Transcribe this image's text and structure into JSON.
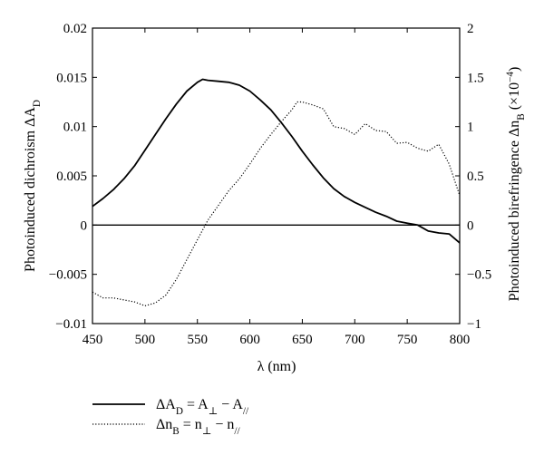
{
  "chart_data": {
    "type": "line",
    "xlabel": "λ (nm)",
    "ylabel_left": "Photoinduced dichroism ΔA_D",
    "ylabel_right": "Photoinduced birefringence Δn_B (×10^−4)",
    "xlim": [
      450,
      800
    ],
    "ylim_left": [
      -0.01,
      0.02
    ],
    "ylim_right": [
      -1,
      2
    ],
    "grid": false,
    "legend_position": "bottom-left",
    "x_ticks": [
      "450",
      "500",
      "550",
      "600",
      "650",
      "700",
      "750",
      "800"
    ],
    "y_left_ticks": [
      "−0.01",
      "−0.005",
      "0",
      "0.005",
      "0.01",
      "0.015",
      "0.02"
    ],
    "y_right_ticks": [
      "−1",
      "−0.5",
      "0",
      "0.5",
      "1",
      "1.5",
      "2"
    ],
    "series": [
      {
        "name": "ΔA_D = A_⊥ − A_//",
        "axis": "left",
        "style": "solid",
        "x": [
          450,
          460,
          470,
          480,
          490,
          500,
          510,
          520,
          530,
          540,
          550,
          555,
          560,
          570,
          580,
          590,
          600,
          610,
          620,
          630,
          640,
          650,
          660,
          670,
          680,
          690,
          700,
          710,
          720,
          730,
          740,
          750,
          760,
          770,
          780,
          790,
          800
        ],
        "y": [
          0.0019,
          0.0027,
          0.0036,
          0.0047,
          0.006,
          0.0076,
          0.0092,
          0.0108,
          0.0123,
          0.0136,
          0.0145,
          0.0148,
          0.0147,
          0.0146,
          0.0145,
          0.0142,
          0.0136,
          0.0127,
          0.0117,
          0.0104,
          0.009,
          0.0075,
          0.0061,
          0.0048,
          0.0037,
          0.0029,
          0.0023,
          0.0018,
          0.0013,
          0.0009,
          0.0004,
          0.0002,
          0.0,
          -0.0006,
          -0.0008,
          -0.0009,
          -0.0018
        ]
      },
      {
        "name": "Δn_B = n_⊥ − n_//",
        "axis": "right",
        "style": "dotted",
        "x": [
          450,
          460,
          470,
          480,
          490,
          500,
          510,
          520,
          530,
          540,
          550,
          560,
          570,
          580,
          590,
          600,
          610,
          620,
          630,
          640,
          645,
          650,
          660,
          670,
          680,
          690,
          700,
          710,
          720,
          730,
          740,
          750,
          760,
          770,
          780,
          790,
          800
        ],
        "y": [
          -0.68,
          -0.74,
          -0.74,
          -0.76,
          -0.78,
          -0.82,
          -0.79,
          -0.71,
          -0.55,
          -0.35,
          -0.15,
          0.05,
          0.2,
          0.35,
          0.47,
          0.62,
          0.78,
          0.92,
          1.05,
          1.17,
          1.25,
          1.25,
          1.22,
          1.18,
          1.0,
          0.98,
          0.92,
          1.03,
          0.96,
          0.95,
          0.83,
          0.84,
          0.78,
          0.75,
          0.82,
          0.62,
          0.3
        ]
      }
    ],
    "zero_line": 0
  }
}
